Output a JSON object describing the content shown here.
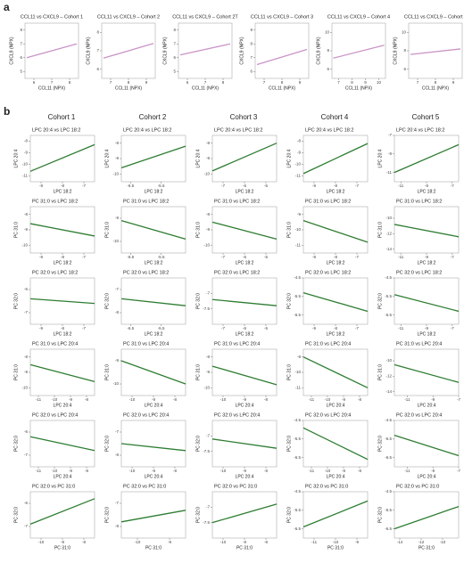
{
  "panel_labels": [
    "a",
    "b"
  ],
  "column_headers": [
    "Cohort 1",
    "Cohort 2",
    "Cohort 3",
    "Cohort 4",
    "Cohort 5"
  ],
  "chart_data": [
    {
      "type": "scatter",
      "title": "CCL11 vs CXCL9 – Cohort 1",
      "xlabel": "CCL11 (NPX)",
      "ylabel": "CXCL9 (NPX)",
      "xlim": [
        5.5,
        8.5
      ],
      "ylim": [
        4.5,
        8.5
      ],
      "xticks": [
        6,
        7,
        8
      ],
      "yticks": [
        5,
        6,
        7,
        8
      ],
      "fit": {
        "color": "#c994c7",
        "x": [
          5.6,
          8.4
        ],
        "y": [
          6.0,
          7.0
        ]
      }
    },
    {
      "type": "scatter",
      "title": "CCL11 vs CXCL9 – Cohort 2",
      "xlabel": "CCL11 (NPX)",
      "ylabel": "CXCL9 (NPX)",
      "xlim": [
        6.5,
        9.5
      ],
      "ylim": [
        5.5,
        8.5
      ],
      "xticks": [
        7,
        8,
        9
      ],
      "yticks": [
        6,
        7,
        8
      ],
      "fit": {
        "color": "#c994c7",
        "x": [
          6.6,
          9.4
        ],
        "y": [
          6.6,
          7.4
        ]
      }
    },
    {
      "type": "scatter",
      "title": "CCL11 vs CXCL9 – Cohort 2T",
      "xlabel": "CCL11 (NPX)",
      "ylabel": "CXCL9 (NPX)",
      "xlim": [
        5.5,
        8.5
      ],
      "ylim": [
        4.5,
        8.5
      ],
      "xticks": [
        6,
        7,
        8
      ],
      "yticks": [
        5,
        6,
        7,
        8
      ],
      "fit": {
        "color": "#c994c7",
        "x": [
          5.6,
          8.4
        ],
        "y": [
          6.2,
          7.0
        ]
      }
    },
    {
      "type": "scatter",
      "title": "CCL11 vs CXCL9 – Cohort 3",
      "xlabel": "CCL11 (NPX)",
      "ylabel": "CXCL9 (NPX)",
      "xlim": [
        6.5,
        9.5
      ],
      "ylim": [
        5.5,
        9.5
      ],
      "xticks": [
        7,
        8,
        9
      ],
      "yticks": [
        6,
        7,
        8,
        9
      ],
      "fit": {
        "color": "#c994c7",
        "x": [
          6.6,
          9.4
        ],
        "y": [
          6.5,
          7.6
        ]
      }
    },
    {
      "type": "scatter",
      "title": "CCL11 vs CXCL9 – Cohort 4",
      "xlabel": "CCL11 (NPX)",
      "ylabel": "CXCL9 (NPX)",
      "xlim": [
        6.5,
        10.5
      ],
      "ylim": [
        5,
        11
      ],
      "xticks": [
        7,
        8,
        9,
        10
      ],
      "yticks": [
        6,
        8,
        10
      ],
      "fit": {
        "color": "#c994c7",
        "x": [
          6.6,
          10.4
        ],
        "y": [
          7.2,
          8.6
        ]
      }
    },
    {
      "type": "scatter",
      "title": "CCL11 vs CXCL9 – Cohort 5",
      "xlabel": "CCL11 (NPX)",
      "ylabel": "CXCL9 (NPX)",
      "xlim": [
        6.5,
        9.5
      ],
      "ylim": [
        5,
        11
      ],
      "xticks": [
        7,
        8,
        9
      ],
      "yticks": [
        6,
        8,
        10
      ],
      "fit": {
        "color": "#c994c7",
        "x": [
          6.6,
          9.4
        ],
        "y": [
          7.6,
          8.2
        ]
      }
    },
    {
      "type": "scatter",
      "title": "LPC 20:4 vs LPC 18:2",
      "xlabel": "LPC 18:2",
      "ylabel": "LPC 20:4",
      "xlim": [
        -9.5,
        -6.5
      ],
      "ylim": [
        -11.5,
        -7.5
      ],
      "xticks": [
        -9,
        -8,
        -7
      ],
      "yticks": [
        -11,
        -10,
        -9,
        -8
      ],
      "fit": {
        "color": "#2e7d32",
        "x": [
          -9.5,
          -6.5
        ],
        "y": [
          -10.6,
          -8.3
        ]
      }
    },
    {
      "type": "scatter",
      "title": "LPC 20:4 vs LPC 18:2",
      "xlabel": "LPC 18:2",
      "ylabel": "LPC 20:4",
      "xlim": [
        -6.8,
        -4.7
      ],
      "ylim": [
        -10.5,
        -7.5
      ],
      "xticks": [
        -6.5,
        -5.5
      ],
      "yticks": [
        -10,
        -9,
        -8
      ],
      "fit": {
        "color": "#2e7d32",
        "x": [
          -6.8,
          -4.7
        ],
        "y": [
          -9.6,
          -8.2
        ]
      }
    },
    {
      "type": "scatter",
      "title": "LPC 20:4 vs LPC 18:2",
      "xlabel": "LPC 18:2",
      "ylabel": "LPC 20:4",
      "xlim": [
        -7.5,
        -4.5
      ],
      "ylim": [
        -10.5,
        -7.5
      ],
      "xticks": [
        -7,
        -6,
        -5
      ],
      "yticks": [
        -10,
        -9,
        -8
      ],
      "fit": {
        "color": "#2e7d32",
        "x": [
          -7.5,
          -4.5
        ],
        "y": [
          -9.8,
          -8.0
        ]
      }
    },
    {
      "type": "scatter",
      "title": "LPC 20:4 vs LPC 18:2",
      "xlabel": "LPC 18:2",
      "ylabel": "LPC 20:4",
      "xlim": [
        -9.5,
        -6.5
      ],
      "ylim": [
        -11.5,
        -7.5
      ],
      "xticks": [
        -9,
        -8,
        -7
      ],
      "yticks": [
        -11,
        -10,
        -9,
        -8
      ],
      "fit": {
        "color": "#2e7d32",
        "x": [
          -9.5,
          -6.5
        ],
        "y": [
          -10.8,
          -8.2
        ]
      }
    },
    {
      "type": "scatter",
      "title": "LPC 20:4 vs LPC 18:2",
      "xlabel": "LPC 18:2",
      "ylabel": "LPC 20:4",
      "xlim": [
        -11.5,
        -6.5
      ],
      "ylim": [
        -12,
        -7
      ],
      "xticks": [
        -11,
        -9,
        -7
      ],
      "yticks": [
        -11,
        -9,
        -7
      ],
      "fit": {
        "color": "#2e7d32",
        "x": [
          -11.5,
          -6.5
        ],
        "y": [
          -11,
          -8
        ]
      }
    },
    {
      "type": "scatter",
      "title": "PC 31:0 vs LPC 18:2",
      "xlabel": "LPC 18:2",
      "ylabel": "PC 31:0",
      "xlim": [
        -9.5,
        -6.5
      ],
      "ylim": [
        -10.5,
        -7.5
      ],
      "xticks": [
        -9,
        -8,
        -7
      ],
      "yticks": [
        -10,
        -9,
        -8
      ],
      "fit": {
        "color": "#2e7d32",
        "x": [
          -9.5,
          -6.5
        ],
        "y": [
          -8.6,
          -9.4
        ]
      }
    },
    {
      "type": "scatter",
      "title": "PC 31:0 vs LPC 18:2",
      "xlabel": "LPC 18:2",
      "ylabel": "PC 31:0",
      "xlim": [
        -6.8,
        -4.7
      ],
      "ylim": [
        -10.5,
        -8.5
      ],
      "xticks": [
        -6.5,
        -5.5
      ],
      "yticks": [
        -10,
        -9
      ],
      "fit": {
        "color": "#2e7d32",
        "x": [
          -6.8,
          -4.7
        ],
        "y": [
          -9.1,
          -9.9
        ]
      }
    },
    {
      "type": "scatter",
      "title": "PC 31:0 vs LPC 18:2",
      "xlabel": "LPC 18:2",
      "ylabel": "PC 31:0",
      "xlim": [
        -7.5,
        -4.5
      ],
      "ylim": [
        -10.5,
        -7.5
      ],
      "xticks": [
        -7,
        -6,
        -5
      ],
      "yticks": [
        -10,
        -9,
        -8
      ],
      "fit": {
        "color": "#2e7d32",
        "x": [
          -7.5,
          -4.5
        ],
        "y": [
          -8.5,
          -9.6
        ]
      }
    },
    {
      "type": "scatter",
      "title": "PC 31:0 vs LPC 18:2",
      "xlabel": "LPC 18:2",
      "ylabel": "PC 31:0",
      "xlim": [
        -9.5,
        -6.5
      ],
      "ylim": [
        -11.5,
        -8.5
      ],
      "xticks": [
        -9,
        -8,
        -7
      ],
      "yticks": [
        -11,
        -10,
        -9
      ],
      "fit": {
        "color": "#2e7d32",
        "x": [
          -9.5,
          -6.5
        ],
        "y": [
          -9.4,
          -10.8
        ]
      }
    },
    {
      "type": "scatter",
      "title": "PC 31:0 vs LPC 18:2",
      "xlabel": "LPC 18:2",
      "ylabel": "PC 31:0",
      "xlim": [
        -11.5,
        -6.5
      ],
      "ylim": [
        -14.5,
        -8.5
      ],
      "xticks": [
        -11,
        -9,
        -7
      ],
      "yticks": [
        -14,
        -12,
        -10
      ],
      "fit": {
        "color": "#2e7d32",
        "x": [
          -11.5,
          -6.5
        ],
        "y": [
          -10.8,
          -12.4
        ]
      }
    },
    {
      "type": "scatter",
      "title": "PC 32:0 vs LPC 18:2",
      "xlabel": "LPC 18:2",
      "ylabel": "PC 32:0",
      "xlim": [
        -9.5,
        -6.5
      ],
      "ylim": [
        -7.5,
        -5.5
      ],
      "xticks": [
        -9,
        -8,
        -7
      ],
      "yticks": [
        -7,
        -6
      ],
      "fit": {
        "color": "#2e7d32",
        "x": [
          -9.5,
          -6.5
        ],
        "y": [
          -6.4,
          -6.6
        ]
      }
    },
    {
      "type": "scatter",
      "title": "PC 32:0 vs LPC 18:2",
      "xlabel": "LPC 18:2",
      "ylabel": "PC 32:0",
      "xlim": [
        -6.8,
        -4.7
      ],
      "ylim": [
        -8.5,
        -6.5
      ],
      "xticks": [
        -6.5,
        -5.5
      ],
      "yticks": [
        -8,
        -7
      ],
      "fit": {
        "color": "#2e7d32",
        "x": [
          -6.8,
          -4.7
        ],
        "y": [
          -7.4,
          -7.7
        ]
      }
    },
    {
      "type": "scatter",
      "title": "PC 32:0 vs LPC 18:2",
      "xlabel": "LPC 18:2",
      "ylabel": "PC 32:0",
      "xlim": [
        -7.5,
        -4.5
      ],
      "ylim": [
        -8,
        -6.5
      ],
      "xticks": [
        -7,
        -6,
        -5
      ],
      "yticks": [
        -7.5,
        -7
      ],
      "fit": {
        "color": "#2e7d32",
        "x": [
          -7.5,
          -4.5
        ],
        "y": [
          -7.2,
          -7.4
        ]
      }
    },
    {
      "type": "scatter",
      "title": "PC 32:0 vs LPC 18:2",
      "xlabel": "LPC 18:2",
      "ylabel": "PC 32:0",
      "xlim": [
        -9.5,
        -6.5
      ],
      "ylim": [
        -7,
        -4.5
      ],
      "xticks": [
        -9,
        -8,
        -7
      ],
      "yticks": [
        -6.5,
        -5.5,
        -4.5
      ],
      "fit": {
        "color": "#2e7d32",
        "x": [
          -9.5,
          -6.5
        ],
        "y": [
          -5.3,
          -6.3
        ]
      }
    },
    {
      "type": "scatter",
      "title": "PC 32:0 vs LPC 18:2",
      "xlabel": "LPC 18:2",
      "ylabel": "PC 32:0",
      "xlim": [
        -11.5,
        -6.5
      ],
      "ylim": [
        -7,
        -4.5
      ],
      "xticks": [
        -11,
        -9,
        -7
      ],
      "yticks": [
        -6.5,
        -5.5,
        -4.5
      ],
      "fit": {
        "color": "#2e7d32",
        "x": [
          -11.5,
          -6.5
        ],
        "y": [
          -5.4,
          -6.3
        ]
      }
    },
    {
      "type": "scatter",
      "title": "PC 31:0 vs LPC 20:4",
      "xlabel": "LPC 20:4",
      "ylabel": "PC 31:0",
      "xlim": [
        -11.5,
        -7.5
      ],
      "ylim": [
        -10.5,
        -7.5
      ],
      "xticks": [
        -11,
        -10,
        -9,
        -8
      ],
      "yticks": [
        -10,
        -9,
        -8
      ],
      "fit": {
        "color": "#2e7d32",
        "x": [
          -11.5,
          -7.5
        ],
        "y": [
          -8.5,
          -9.6
        ]
      }
    },
    {
      "type": "scatter",
      "title": "PC 31:0 vs LPC 20:4",
      "xlabel": "LPC 20:4",
      "ylabel": "PC 31:0",
      "xlim": [
        -10.5,
        -7.5
      ],
      "ylim": [
        -10.5,
        -8.5
      ],
      "xticks": [
        -10,
        -9,
        -8
      ],
      "yticks": [
        -10,
        -9
      ],
      "fit": {
        "color": "#2e7d32",
        "x": [
          -10.5,
          -7.5
        ],
        "y": [
          -9.0,
          -10.0
        ]
      }
    },
    {
      "type": "scatter",
      "title": "PC 31:0 vs LPC 20:4",
      "xlabel": "LPC 20:4",
      "ylabel": "PC 31:0",
      "xlim": [
        -10.5,
        -7.5
      ],
      "ylim": [
        -10.5,
        -7.5
      ],
      "xticks": [
        -10,
        -9,
        -8
      ],
      "yticks": [
        -10,
        -9,
        -8
      ],
      "fit": {
        "color": "#2e7d32",
        "x": [
          -10.5,
          -7.5
        ],
        "y": [
          -8.6,
          -9.8
        ]
      }
    },
    {
      "type": "scatter",
      "title": "PC 31:0 vs LPC 20:4",
      "xlabel": "LPC 20:4",
      "ylabel": "PC 31:0",
      "xlim": [
        -11.5,
        -7.5
      ],
      "ylim": [
        -11.5,
        -8.5
      ],
      "xticks": [
        -11,
        -10,
        -9,
        -8
      ],
      "yticks": [
        -11,
        -10,
        -9
      ],
      "fit": {
        "color": "#2e7d32",
        "x": [
          -11.5,
          -7.5
        ],
        "y": [
          -9.0,
          -11.0
        ]
      }
    },
    {
      "type": "scatter",
      "title": "PC 31:0 vs LPC 20:4",
      "xlabel": "LPC 20:4",
      "ylabel": "PC 31:0",
      "xlim": [
        -12,
        -7
      ],
      "ylim": [
        -14.5,
        -8.5
      ],
      "xticks": [
        -11,
        -9,
        -7
      ],
      "yticks": [
        -14,
        -12,
        -10
      ],
      "fit": {
        "color": "#2e7d32",
        "x": [
          -12,
          -7
        ],
        "y": [
          -10.5,
          -12.8
        ]
      }
    },
    {
      "type": "scatter",
      "title": "PC 32:0 vs LPC 20:4",
      "xlabel": "LPC 20:4",
      "ylabel": "PC 32:0",
      "xlim": [
        -11.5,
        -7.5
      ],
      "ylim": [
        -7.5,
        -5.5
      ],
      "xticks": [
        -11,
        -10,
        -9,
        -8
      ],
      "yticks": [
        -7,
        -6
      ],
      "fit": {
        "color": "#2e7d32",
        "x": [
          -11.5,
          -7.5
        ],
        "y": [
          -6.2,
          -6.8
        ]
      }
    },
    {
      "type": "scatter",
      "title": "PC 32:0 vs LPC 20:4",
      "xlabel": "LPC 20:4",
      "ylabel": "PC 32:0",
      "xlim": [
        -10.5,
        -7.5
      ],
      "ylim": [
        -8.5,
        -6.5
      ],
      "xticks": [
        -10,
        -9,
        -8
      ],
      "yticks": [
        -8,
        -7
      ],
      "fit": {
        "color": "#2e7d32",
        "x": [
          -10.5,
          -7.5
        ],
        "y": [
          -7.5,
          -7.8
        ]
      }
    },
    {
      "type": "scatter",
      "title": "PC 32:0 vs LPC 20:4",
      "xlabel": "LPC 20:4",
      "ylabel": "PC 32:0",
      "xlim": [
        -10.5,
        -7.5
      ],
      "ylim": [
        -8,
        -6.5
      ],
      "xticks": [
        -10,
        -9,
        -8
      ],
      "yticks": [
        -7.5,
        -7
      ],
      "fit": {
        "color": "#2e7d32",
        "x": [
          -10.5,
          -7.5
        ],
        "y": [
          -7.1,
          -7.4
        ]
      }
    },
    {
      "type": "scatter",
      "title": "PC 32:0 vs LPC 20:4",
      "xlabel": "LPC 20:4",
      "ylabel": "PC 32:0",
      "xlim": [
        -11.5,
        -7.5
      ],
      "ylim": [
        -7,
        -4.5
      ],
      "xticks": [
        -11,
        -10,
        -9,
        -8
      ],
      "yticks": [
        -6.5,
        -5.5,
        -4.5
      ],
      "fit": {
        "color": "#2e7d32",
        "x": [
          -11.5,
          -7.5
        ],
        "y": [
          -4.9,
          -6.6
        ]
      }
    },
    {
      "type": "scatter",
      "title": "PC 32:0 vs LPC 20:4",
      "xlabel": "LPC 20:4",
      "ylabel": "PC 32:0",
      "xlim": [
        -12,
        -7
      ],
      "ylim": [
        -7,
        -4.5
      ],
      "xticks": [
        -11,
        -9,
        -7
      ],
      "yticks": [
        -6.5,
        -5.5,
        -4.5
      ],
      "fit": {
        "color": "#2e7d32",
        "x": [
          -12,
          -7
        ],
        "y": [
          -5.3,
          -6.4
        ]
      }
    },
    {
      "type": "scatter",
      "title": "PC 32:0 vs PC 31:0",
      "xlabel": "PC 31:0",
      "ylabel": "PC 32:0",
      "xlim": [
        -10.5,
        -7.5
      ],
      "ylim": [
        -7.5,
        -5.5
      ],
      "xticks": [
        -10,
        -9,
        -8
      ],
      "yticks": [
        -7,
        -6
      ],
      "fit": {
        "color": "#2e7d32",
        "x": [
          -10.5,
          -7.5
        ],
        "y": [
          -6.9,
          -5.8
        ]
      }
    },
    {
      "type": "scatter",
      "title": "PC 32:0 vs PC 31:0",
      "xlabel": "PC 31:0",
      "ylabel": "PC 32:0",
      "xlim": [
        -10.5,
        -8.5
      ],
      "ylim": [
        -8.5,
        -6.5
      ],
      "xticks": [
        -10,
        -9
      ],
      "yticks": [
        -8,
        -7
      ],
      "fit": {
        "color": "#2e7d32",
        "x": [
          -10.5,
          -8.5
        ],
        "y": [
          -7.8,
          -7.3
        ]
      }
    },
    {
      "type": "scatter",
      "title": "PC 32:0 vs PC 31:0",
      "xlabel": "PC 31:0",
      "ylabel": "PC 32:0",
      "xlim": [
        -10.5,
        -7.5
      ],
      "ylim": [
        -8,
        -6.5
      ],
      "xticks": [
        -10,
        -9,
        -8
      ],
      "yticks": [
        -7.5,
        -7
      ],
      "fit": {
        "color": "#2e7d32",
        "x": [
          -10.5,
          -7.5
        ],
        "y": [
          -7.5,
          -6.9
        ]
      }
    },
    {
      "type": "scatter",
      "title": "PC 32:0 vs PC 31:0",
      "xlabel": "PC 31:0",
      "ylabel": "PC 32:0",
      "xlim": [
        -11.5,
        -8.5
      ],
      "ylim": [
        -7,
        -4.5
      ],
      "xticks": [
        -11,
        -10,
        -9
      ],
      "yticks": [
        -6.5,
        -5.5,
        -4.5
      ],
      "fit": {
        "color": "#2e7d32",
        "x": [
          -11.5,
          -8.5
        ],
        "y": [
          -6.4,
          -5.0
        ]
      }
    },
    {
      "type": "scatter",
      "title": "PC 32:0 vs PC 31:0",
      "xlabel": "PC 31:0",
      "ylabel": "PC 32:0",
      "xlim": [
        -14.5,
        -8.5
      ],
      "ylim": [
        -7,
        -4.5
      ],
      "xticks": [
        -14,
        -12,
        -10
      ],
      "yticks": [
        -6.5,
        -5.5,
        -4.5
      ],
      "fit": {
        "color": "#2e7d32",
        "x": [
          -14.5,
          -8.5
        ],
        "y": [
          -6.5,
          -5.3
        ]
      }
    }
  ]
}
